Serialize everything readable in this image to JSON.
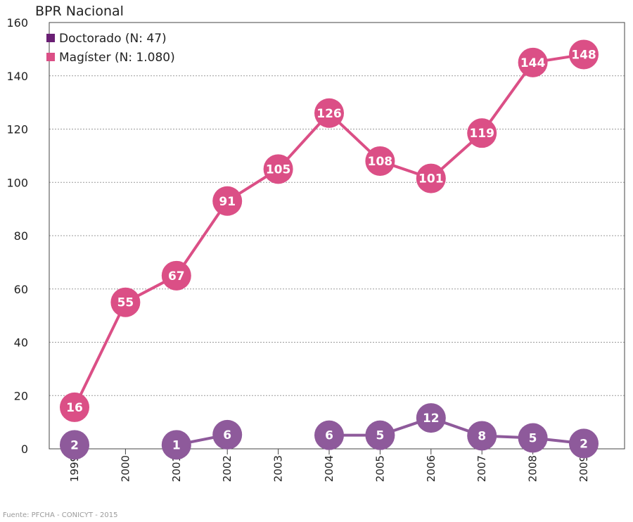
{
  "chart_data": {
    "type": "line",
    "title": "BPR Nacional",
    "x": [
      "1999",
      "2000",
      "2001",
      "2002",
      "2003",
      "2004",
      "2005",
      "2006",
      "2007",
      "2008",
      "2009"
    ],
    "ylim": [
      0,
      160
    ],
    "yticks": [
      "0",
      "20",
      "40",
      "60",
      "80",
      "100",
      "120",
      "140",
      "160"
    ],
    "grid": true,
    "legend_position": "top-left",
    "series": [
      {
        "name": "Doctorado (N: 47)",
        "color": "#8e5a9b",
        "legend_color": "#6a1f74",
        "values": [
          2,
          null,
          1,
          6,
          null,
          6,
          5,
          12,
          8,
          5,
          2
        ],
        "labels": [
          "2",
          "",
          "1",
          "6",
          "",
          "6",
          "5",
          "12",
          "8",
          "5",
          "2"
        ],
        "plot_positions": [
          1.5,
          null,
          1.5,
          5.3,
          null,
          5.1,
          5.1,
          11.6,
          4.9,
          4.1,
          2.0
        ]
      },
      {
        "name": "Magíster (N: 1.080)",
        "color": "#db4f86",
        "legend_color": "#db4f86",
        "values": [
          16,
          55,
          67,
          91,
          105,
          126,
          108,
          101,
          119,
          144,
          148
        ],
        "labels": [
          "16",
          "55",
          "67",
          "91",
          "105",
          "126",
          "108",
          "101",
          "119",
          "144",
          "148"
        ],
        "plot_positions": [
          15.6,
          55.0,
          65.0,
          93.0,
          105.0,
          126.0,
          108.0,
          101.5,
          118.5,
          145.0,
          148.0
        ]
      }
    ],
    "source": "Fuente: PFCHA - CONICYT - 2015"
  }
}
